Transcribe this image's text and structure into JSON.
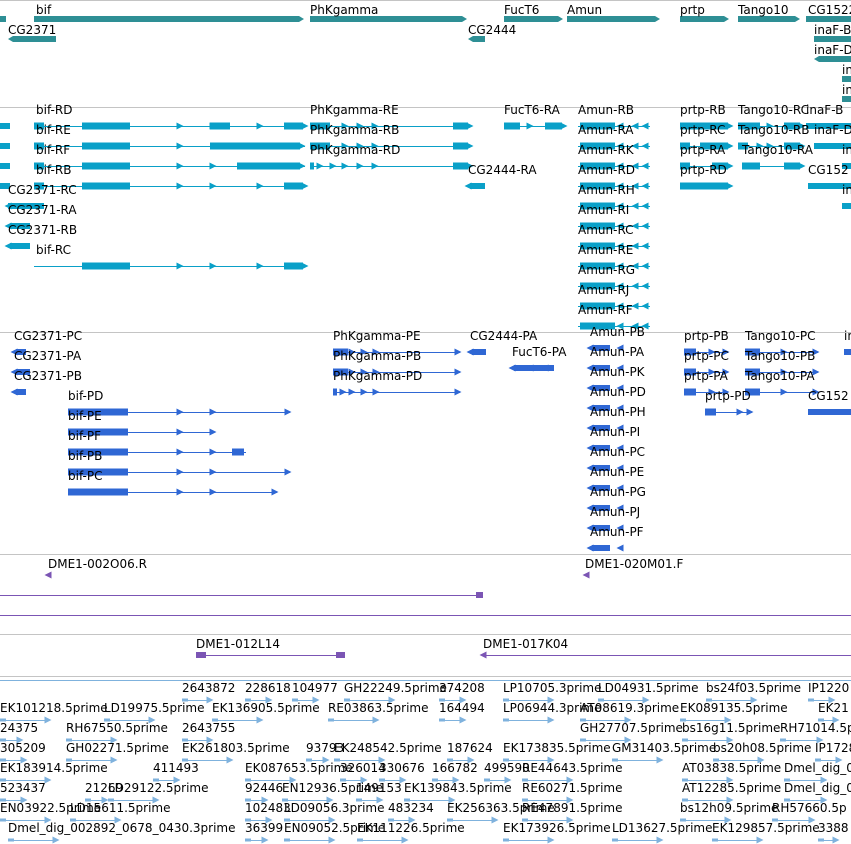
{
  "colors": {
    "gene_track": "#2e8f95",
    "transcript": "#0aa0c8",
    "protein": "#2f67d4",
    "clone": "#7b55b4",
    "est": "#7fb2dd",
    "separator": "#c4c4c4"
  },
  "genes": [
    "bif",
    "PhKgamma",
    "FucT6",
    "Amun",
    "prtp",
    "Tango10",
    "CG1522",
    "CG2371",
    "CG2444",
    "inaF-B",
    "inaF-D",
    "in",
    "in"
  ],
  "transcripts": [
    "bif-RD",
    "bif-RE",
    "bif-RF",
    "bif-RB",
    "bif-RC",
    "CG2371-RC",
    "CG2371-RA",
    "CG2371-RB",
    "PhKgamma-RE",
    "PhKgamma-RB",
    "PhKgamma-RD",
    "FucT6-RA",
    "CG2444-RA",
    "Amun-RB",
    "Amun-RA",
    "Amun-RK",
    "Amun-RD",
    "Amun-RH",
    "Amun-RI",
    "Amun-RC",
    "Amun-RE",
    "Amun-RG",
    "Amun-RJ",
    "Amun-RF",
    "prtp-RB",
    "prtp-RC",
    "prtp-RA",
    "prtp-RD",
    "Tango10-RC",
    "Tango10-RB",
    "Tango10-RA",
    "inaF-B",
    "inaF-D",
    "in",
    "CG152",
    "in"
  ],
  "proteins": [
    "CG2371-PC",
    "CG2371-PA",
    "CG2371-PB",
    "bif-PD",
    "bif-PE",
    "bif-PF",
    "bif-PB",
    "bif-PC",
    "PhKgamma-PE",
    "PhKgamma-PB",
    "PhKgamma-PD",
    "CG2444-PA",
    "FucT6-PA",
    "Amun-PB",
    "Amun-PA",
    "Amun-PK",
    "Amun-PD",
    "Amun-PH",
    "Amun-PI",
    "Amun-PC",
    "Amun-PE",
    "Amun-PG",
    "Amun-PJ",
    "Amun-PF",
    "prtp-PB",
    "prtp-PC",
    "prtp-PA",
    "prtp-PD",
    "Tango10-PC",
    "Tango10-PB",
    "Tango10-PA",
    "in",
    "CG152"
  ],
  "clones": [
    "DME1-002O06.R",
    "DME1-020M01.F",
    "DME1-012L14",
    "DME1-017K04"
  ],
  "ests": [
    "2643872",
    "228618",
    "104977",
    "GH22249.5prime",
    "374208",
    "LP10705.3prime",
    "LD04931.5prime",
    "bs24f03.5prime",
    "IP1220",
    "EK101218.5prime",
    "LD19975.5prime",
    "EK136905.5prime",
    "RE03863.5prime",
    "164494",
    "LP06944.3prime",
    "AT08619.3prime",
    "EK089135.5prime",
    "EK21",
    "24375",
    "RH67550.5prime",
    "2643755",
    "GH27707.5prime",
    "bs16g11.5prime",
    "RH71014.5p",
    "305209",
    "GH02271.5prime",
    "EK261803.5prime",
    "93793",
    "EK248542.5prime",
    "187624",
    "EK173835.5prime",
    "GM31403.5prime",
    "bs20h08.5prime",
    "IP1728",
    "EK183914.5prime",
    "411493",
    "EK087653.5prime",
    "326014",
    "330676",
    "166782",
    "499590",
    "RE44643.5prime",
    "AT03838.5prime",
    "Dmel_dig_0",
    "523437",
    "21269",
    "LD29122.5prime",
    "92446",
    "EN12936.5prime",
    "149153",
    "EK139843.5prime",
    "RE60271.5prime",
    "AT12285.5prime",
    "Dmel_dig_0",
    "EN03922.5prime",
    "LD15611.5prime",
    "102483",
    "LD09056.3prime",
    "483234",
    "EK256363.5prime",
    "RE47891.5prime",
    "bs12h09.5prime",
    "RH57660.5p",
    "Dmel_dig_002892_0678_0430.3prime",
    "36399",
    "EN09052.5prime",
    "EK111226.5prime",
    "EK173926.5prime",
    "LD13627.5prime",
    "EK129857.5prime",
    "3388"
  ]
}
